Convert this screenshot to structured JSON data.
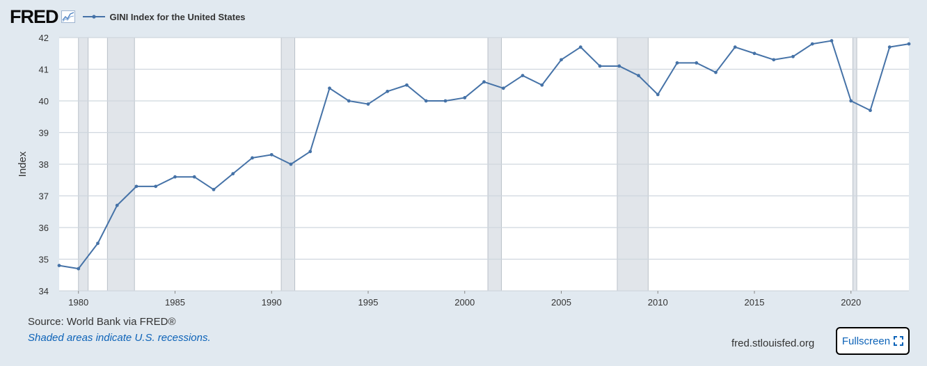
{
  "header": {
    "logo_text": "FRED",
    "series_title": "GINI Index for the United States",
    "line_color": "#4572a7"
  },
  "footer": {
    "source": "Source: World Bank via FRED®",
    "recession_note": "Shaded areas indicate U.S. recessions.",
    "site": "fred.stlouisfed.org",
    "fullscreen_label": "Fullscreen",
    "link_color": "#0d63b8"
  },
  "chart_data": {
    "type": "line",
    "title": "",
    "xlabel": "",
    "ylabel": "Index",
    "xlim": [
      1979,
      2023
    ],
    "ylim": [
      34,
      42
    ],
    "grid": true,
    "x_ticks": [
      1980,
      1985,
      1990,
      1995,
      2000,
      2005,
      2010,
      2015,
      2020
    ],
    "y_ticks": [
      34,
      35,
      36,
      37,
      38,
      39,
      40,
      41,
      42
    ],
    "series": [
      {
        "name": "GINI Index for the United States",
        "color": "#4572a7",
        "x": [
          1979,
          1980,
          1981,
          1982,
          1983,
          1984,
          1985,
          1986,
          1987,
          1988,
          1989,
          1990,
          1991,
          1992,
          1993,
          1994,
          1995,
          1996,
          1997,
          1998,
          1999,
          2000,
          2001,
          2002,
          2003,
          2004,
          2005,
          2006,
          2007,
          2008,
          2009,
          2010,
          2011,
          2012,
          2013,
          2014,
          2015,
          2016,
          2017,
          2018,
          2019,
          2020,
          2021,
          2022,
          2023
        ],
        "values": [
          34.8,
          34.7,
          35.5,
          36.7,
          37.3,
          37.3,
          37.6,
          37.6,
          37.2,
          37.7,
          38.2,
          38.3,
          38.0,
          38.4,
          40.4,
          40.0,
          39.9,
          40.3,
          40.5,
          40.0,
          40.0,
          40.1,
          40.6,
          40.4,
          40.8,
          40.5,
          41.3,
          41.7,
          41.1,
          41.1,
          40.8,
          40.2,
          41.2,
          41.2,
          40.9,
          41.7,
          41.5,
          41.3,
          41.4,
          41.8,
          41.9,
          40.0,
          39.7,
          41.7,
          41.8
        ]
      }
    ],
    "recessions": [
      [
        1980.0,
        1980.5
      ],
      [
        1981.5,
        1982.9
      ],
      [
        1990.5,
        1991.2
      ],
      [
        2001.2,
        2001.9
      ],
      [
        2007.9,
        2009.5
      ],
      [
        2020.1,
        2020.3
      ]
    ]
  }
}
